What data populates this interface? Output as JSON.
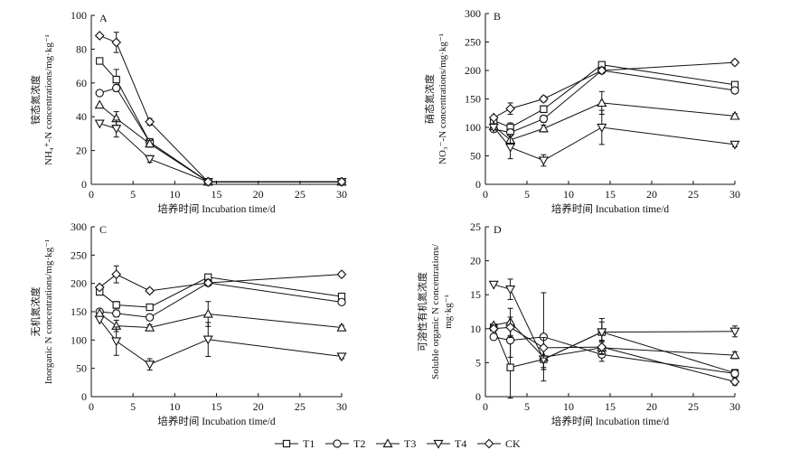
{
  "chart_data": [
    {
      "type": "line",
      "panel_letter": "A",
      "ylabel_line1": "铵态氮浓度",
      "ylabel_line2": "NH₄⁺-N concentrations/mg·kg⁻¹",
      "xlabel": "培养时间 Incubation time/d",
      "x": [
        1,
        3,
        7,
        14,
        30
      ],
      "xlim": [
        0,
        30
      ],
      "ylim": [
        0,
        100
      ],
      "yticks": [
        0,
        20,
        40,
        60,
        80,
        100
      ],
      "series": [
        {
          "name": "T1",
          "values": [
            73,
            62,
            25,
            1.5,
            1.5
          ],
          "err": [
            0,
            6,
            2,
            0.5,
            0.5
          ]
        },
        {
          "name": "T2",
          "values": [
            54,
            57,
            25,
            1.5,
            1.5
          ],
          "err": [
            0,
            2,
            2,
            0.5,
            0.5
          ]
        },
        {
          "name": "T3",
          "values": [
            47,
            39,
            24,
            1.5,
            1.5
          ],
          "err": [
            0,
            4,
            2,
            0.5,
            0.5
          ]
        },
        {
          "name": "T4",
          "values": [
            36,
            33,
            15,
            1.5,
            1.5
          ],
          "err": [
            0,
            5,
            2,
            0.5,
            0.5
          ]
        },
        {
          "name": "CK",
          "values": [
            88,
            84,
            37,
            1.5,
            1.5
          ],
          "err": [
            0,
            6,
            2,
            0.5,
            0.5
          ]
        }
      ]
    },
    {
      "type": "line",
      "panel_letter": "B",
      "ylabel_line1": "硝态氮浓度",
      "ylabel_line2": "NO₃⁻-N concentrations/mg·kg⁻¹",
      "xlabel": "培养时间 Incubation time/d",
      "x": [
        1,
        3,
        7,
        14,
        30
      ],
      "xlim": [
        0,
        30
      ],
      "ylim": [
        0,
        300
      ],
      "yticks": [
        0,
        50,
        100,
        150,
        200,
        250,
        300
      ],
      "series": [
        {
          "name": "T1",
          "values": [
            112,
            100,
            132,
            210,
            175
          ],
          "err": [
            0,
            8,
            6,
            5,
            5
          ]
        },
        {
          "name": "T2",
          "values": [
            97,
            91,
            115,
            200,
            165
          ],
          "err": [
            0,
            6,
            6,
            5,
            5
          ]
        },
        {
          "name": "T3",
          "values": [
            102,
            78,
            98,
            143,
            120
          ],
          "err": [
            0,
            10,
            6,
            20,
            4
          ]
        },
        {
          "name": "T4",
          "values": [
            100,
            65,
            42,
            100,
            70
          ],
          "err": [
            0,
            20,
            10,
            30,
            4
          ]
        },
        {
          "name": "CK",
          "values": [
            117,
            133,
            150,
            200,
            214
          ],
          "err": [
            0,
            10,
            5,
            5,
            4
          ]
        }
      ]
    },
    {
      "type": "line",
      "panel_letter": "C",
      "ylabel_line1": "无机氮浓度",
      "ylabel_line2": "Inorganic N concentrations/mg·kg⁻¹",
      "xlabel": "培养时间 Incubation time/d",
      "x": [
        1,
        3,
        7,
        14,
        30
      ],
      "xlim": [
        0,
        30
      ],
      "ylim": [
        0,
        300
      ],
      "yticks": [
        0,
        50,
        100,
        150,
        200,
        250,
        300
      ],
      "series": [
        {
          "name": "T1",
          "values": [
            185,
            162,
            158,
            211,
            177
          ],
          "err": [
            0,
            6,
            5,
            5,
            5
          ]
        },
        {
          "name": "T2",
          "values": [
            150,
            147,
            140,
            201,
            167
          ],
          "err": [
            0,
            6,
            5,
            5,
            5
          ]
        },
        {
          "name": "T3",
          "values": [
            147,
            125,
            122,
            146,
            122
          ],
          "err": [
            0,
            10,
            5,
            22,
            4
          ]
        },
        {
          "name": "T4",
          "values": [
            136,
            98,
            57,
            101,
            71
          ],
          "err": [
            0,
            25,
            10,
            30,
            4
          ]
        },
        {
          "name": "CK",
          "values": [
            193,
            216,
            187,
            201,
            216
          ],
          "err": [
            0,
            15,
            4,
            5,
            4
          ]
        }
      ]
    },
    {
      "type": "line",
      "panel_letter": "D",
      "ylabel_line1": "可溶性有机氮浓度",
      "ylabel_line2": "Soluble organic N concentrations/",
      "ylabel_line3": "mg·kg⁻¹",
      "xlabel": "培养时间 Incubation time/d",
      "x": [
        1,
        3,
        7,
        14,
        30
      ],
      "xlim": [
        0,
        30
      ],
      "ylim": [
        0,
        25
      ],
      "yticks": [
        0,
        5,
        10,
        15,
        20,
        25
      ],
      "series": [
        {
          "name": "T1",
          "values": [
            10.2,
            4.3,
            5.5,
            9.5,
            3.5
          ],
          "err": [
            0,
            4.5,
            1.5,
            1.5,
            0.5
          ]
        },
        {
          "name": "T2",
          "values": [
            8.8,
            8.3,
            8.8,
            6.2,
            3.4
          ],
          "err": [
            0,
            2.5,
            6.5,
            1.0,
            0.5
          ]
        },
        {
          "name": "T3",
          "values": [
            10.5,
            11.0,
            5.8,
            7.2,
            6.1
          ],
          "err": [
            0,
            2.0,
            1.5,
            1.0,
            0.5
          ]
        },
        {
          "name": "T4",
          "values": [
            16.5,
            15.8,
            5.5,
            9.5,
            9.6
          ],
          "err": [
            0,
            1.5,
            1.5,
            2.0,
            0.8
          ]
        },
        {
          "name": "CK",
          "values": [
            10.0,
            10.2,
            7.2,
            7.3,
            2.2
          ],
          "err": [
            0,
            1.5,
            1.5,
            1.0,
            0.5
          ]
        }
      ]
    }
  ],
  "legend": {
    "items": [
      {
        "name": "T1",
        "marker": "square"
      },
      {
        "name": "T2",
        "marker": "circle"
      },
      {
        "name": "T3",
        "marker": "triangle-up"
      },
      {
        "name": "T4",
        "marker": "triangle-down"
      },
      {
        "name": "CK",
        "marker": "diamond"
      }
    ]
  }
}
